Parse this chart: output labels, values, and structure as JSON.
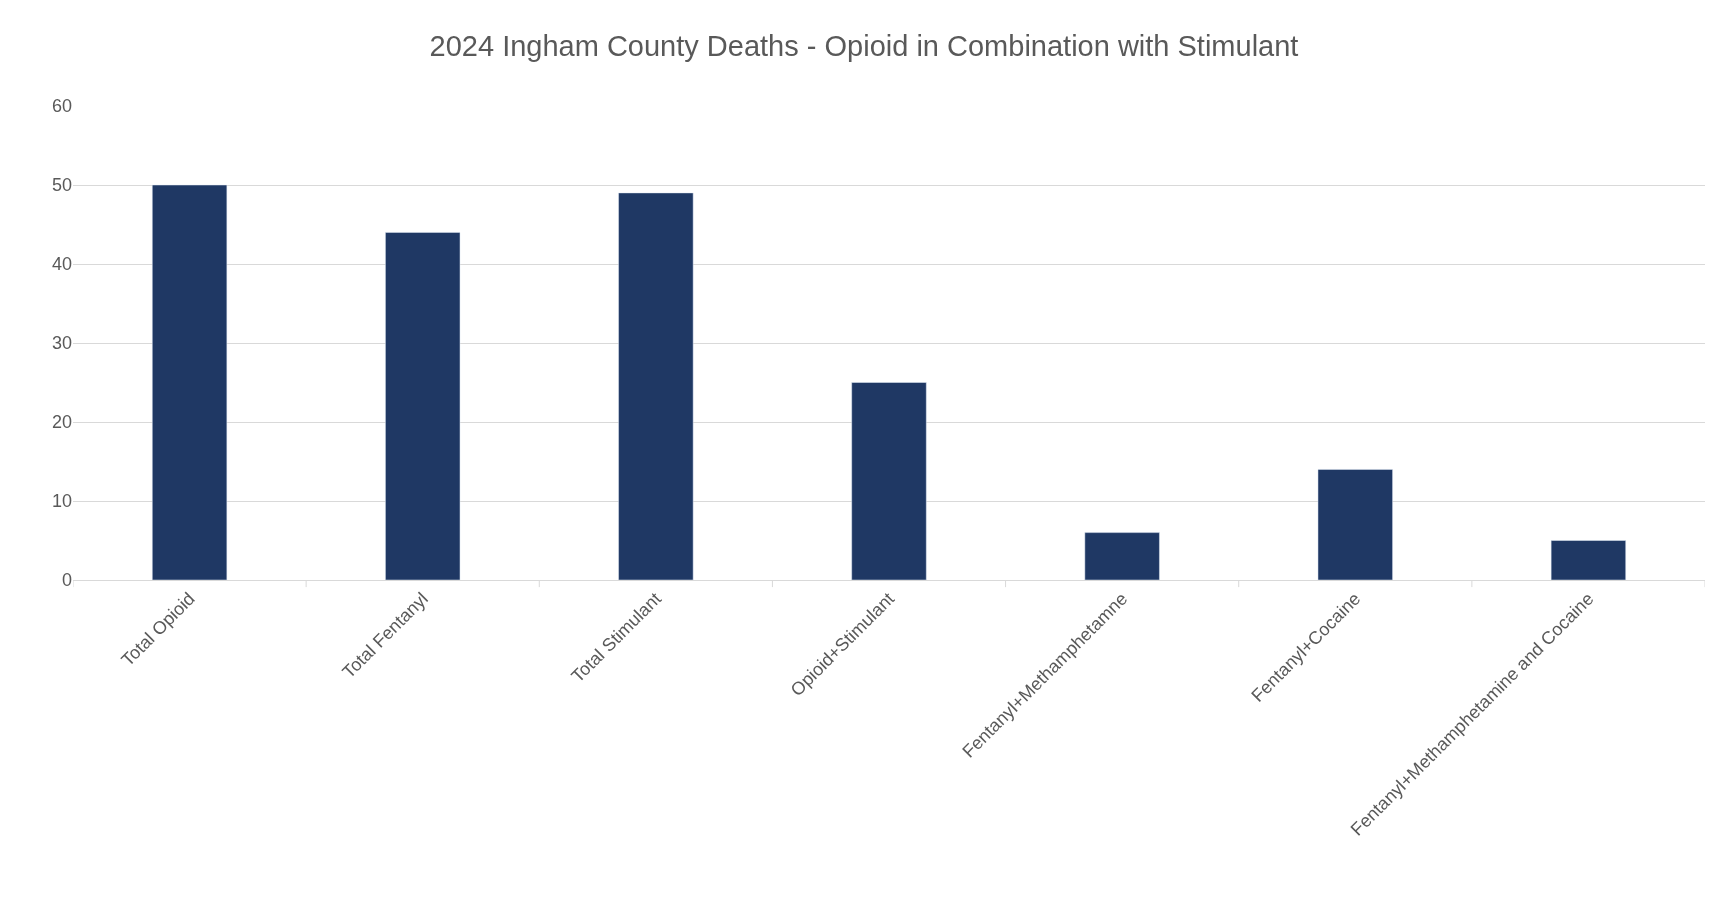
{
  "chart_data": {
    "type": "bar",
    "title": "2024 Ingham County Deaths - Opioid in Combination with Stimulant",
    "categories": [
      "Total Opioid",
      "Total Fentanyl",
      "Total Stimulant",
      "Opioid+Stimulant",
      "Fentanyl+Methamphetamne",
      "Fentanyl+Cocaine",
      "Fentanyl+Methamphetamine and Cocaine"
    ],
    "values": [
      50,
      44,
      49,
      25,
      6,
      14,
      5
    ],
    "color": "#1f3864",
    "ylim": [
      0,
      60
    ],
    "yticks": [
      0,
      10,
      20,
      30,
      40,
      50,
      60
    ],
    "grid": "y",
    "legend": false
  }
}
